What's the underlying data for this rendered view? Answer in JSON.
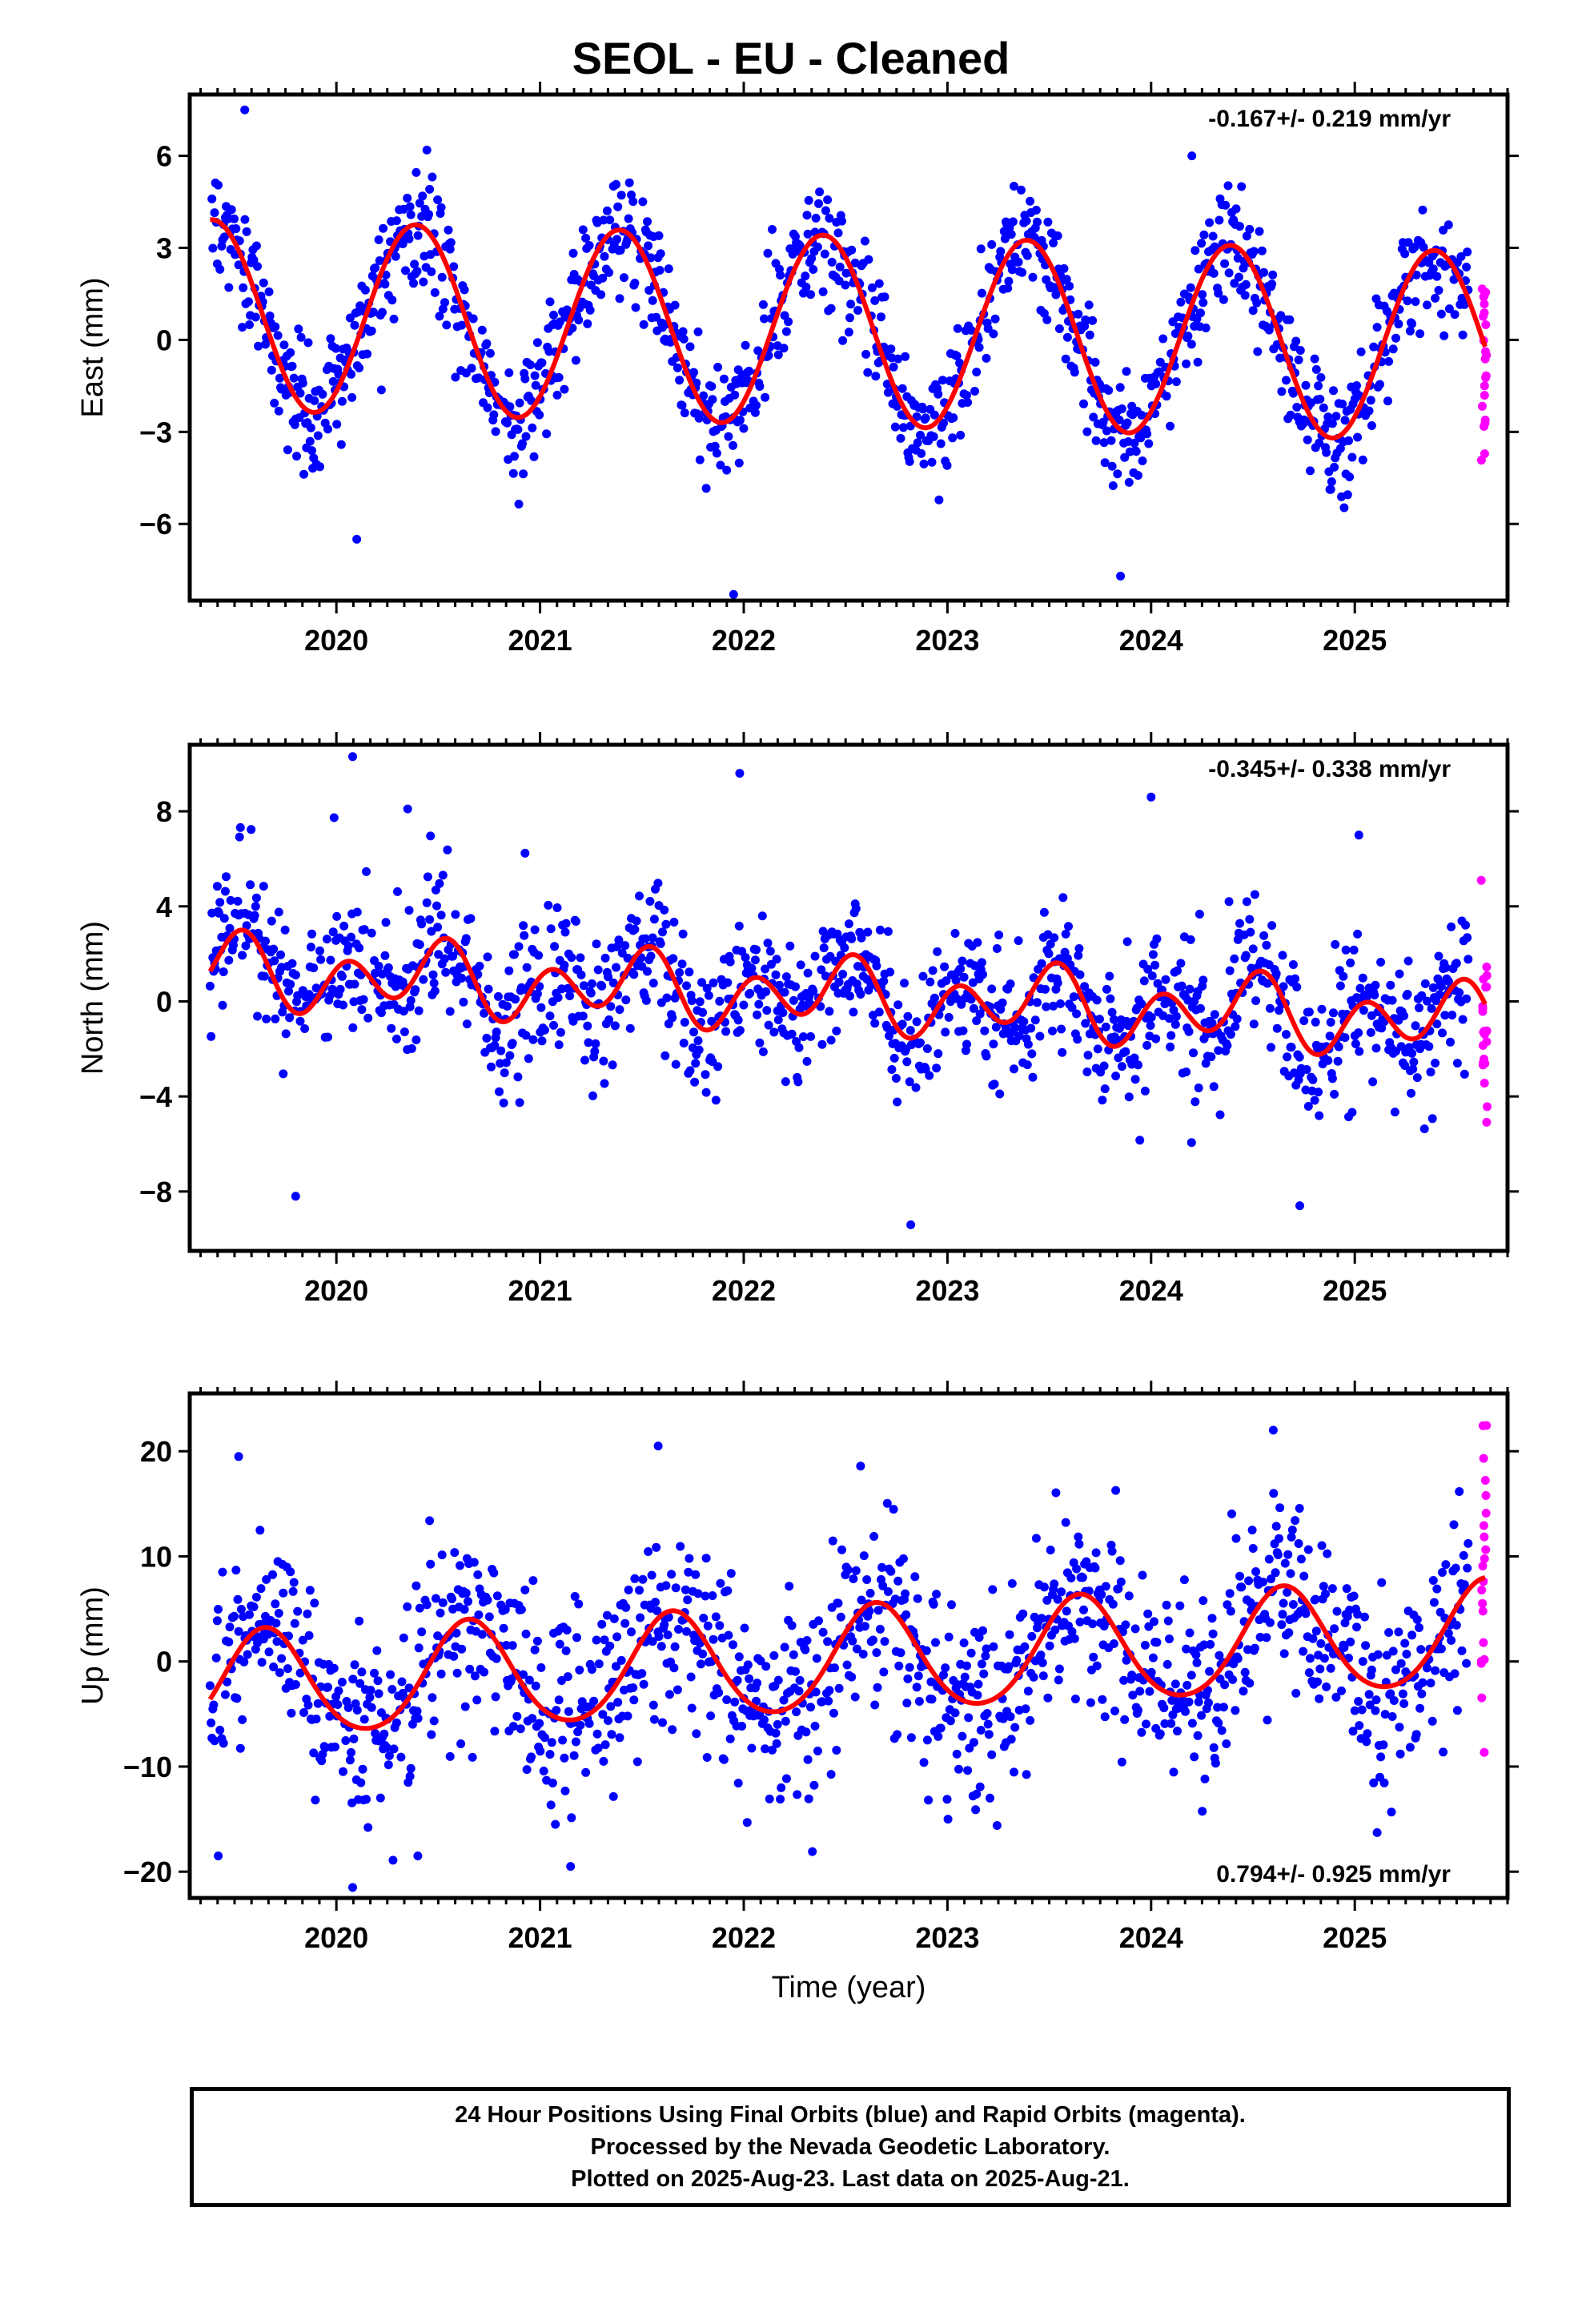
{
  "title": "SEOL  - EU - Cleaned",
  "footer": {
    "line1": "24 Hour Positions Using Final Orbits (blue) and Rapid Orbits (magenta).",
    "line2": "Processed by the Nevada Geodetic Laboratory.",
    "line3": "Plotted on 2025-Aug-23. Last data on 2025-Aug-21."
  },
  "colors": {
    "final_orbits": "#0000ff",
    "rapid_orbits": "#ff00ff",
    "model_fit": "#ff0000",
    "axes": "#000000"
  },
  "chart_data": [
    {
      "type": "scatter",
      "ylabel": "East (mm)",
      "xlabel": "",
      "rate_text": "-0.167+/- 0.219 mm/yr",
      "xlim": [
        2019.28,
        2025.75
      ],
      "ylim": [
        -8.5,
        8.0
      ],
      "yticks": [
        -6,
        -3,
        0,
        3,
        6
      ],
      "ytick_labels": [
        "−6",
        "−3",
        "0",
        "3",
        "6"
      ],
      "xticks": [
        2020,
        2021,
        2022,
        2023,
        2024,
        2025
      ],
      "xtick_labels": [
        "2020",
        "2021",
        "2022",
        "2023",
        "2024",
        "2025"
      ],
      "data_start": 2019.38,
      "final_end": 2025.56,
      "rapid_end": 2025.64,
      "model": {
        "offset": 0.3,
        "rate": -0.167,
        "ref_year": 2022.5,
        "annual_amp": 3.1,
        "annual_peak": 0.39,
        "semiannual_amp": 0.0,
        "semiannual_peak": 0.0
      },
      "noise": 0.95,
      "outliers": [
        [
          2019.55,
          7.5
        ],
        [
          2021.95,
          -8.3
        ],
        [
          2023.85,
          -7.7
        ],
        [
          2020.1,
          -6.5
        ],
        [
          2024.2,
          6.0
        ]
      ]
    },
    {
      "type": "scatter",
      "ylabel": "North (mm)",
      "xlabel": "",
      "rate_text": "-0.345+/- 0.338 mm/yr",
      "xlim": [
        2019.28,
        2025.75
      ],
      "ylim": [
        -10.5,
        10.8
      ],
      "yticks": [
        -8,
        -4,
        0,
        4,
        8
      ],
      "ytick_labels": [
        "−8",
        "−4",
        "0",
        "4",
        "8"
      ],
      "xticks": [
        2020,
        2021,
        2022,
        2023,
        2024,
        2025
      ],
      "xtick_labels": [
        "2020",
        "2021",
        "2022",
        "2023",
        "2024",
        "2025"
      ],
      "data_start": 2019.38,
      "final_end": 2025.56,
      "rapid_end": 2025.64,
      "model": {
        "offset": 0.2,
        "rate": -0.345,
        "ref_year": 2022.5,
        "annual_amp": 0.7,
        "annual_peak": 0.45,
        "semiannual_amp": 1.2,
        "semiannual_peak": 0.05
      },
      "noise": 1.5,
      "outliers": [
        [
          2020.08,
          10.3
        ],
        [
          2021.98,
          9.6
        ],
        [
          2024.0,
          8.6
        ],
        [
          2019.8,
          -8.2
        ],
        [
          2022.82,
          -9.4
        ],
        [
          2024.73,
          -8.6
        ],
        [
          2020.35,
          8.1
        ],
        [
          2025.02,
          7.0
        ]
      ]
    },
    {
      "type": "scatter",
      "ylabel": "Up (mm)",
      "xlabel": "Time (year)",
      "rate_text": "0.794+/- 0.925 mm/yr",
      "xlim": [
        2019.28,
        2025.75
      ],
      "ylim": [
        -22.5,
        25.5
      ],
      "yticks": [
        -20,
        -10,
        0,
        10,
        20
      ],
      "ytick_labels": [
        "−20",
        "−10",
        "0",
        "10",
        "20"
      ],
      "xticks": [
        2020,
        2021,
        2022,
        2023,
        2024,
        2025
      ],
      "xtick_labels": [
        "2020",
        "2021",
        "2022",
        "2023",
        "2024",
        "2025"
      ],
      "data_start": 2019.38,
      "final_end": 2025.56,
      "rapid_end": 2025.64,
      "model": {
        "offset": 0.0,
        "rate": 0.794,
        "ref_year": 2022.5,
        "annual_amp": 5.0,
        "annual_peak": 0.65,
        "semiannual_amp": 0.5,
        "semiannual_peak": 0.15
      },
      "noise": 4.5,
      "outliers": [
        [
          2019.52,
          19.5
        ],
        [
          2021.58,
          20.5
        ],
        [
          2024.6,
          22.0
        ],
        [
          2020.08,
          -21.5
        ],
        [
          2021.15,
          -19.5
        ],
        [
          2019.42,
          -18.5
        ],
        [
          2020.4,
          -18.5
        ]
      ]
    }
  ]
}
